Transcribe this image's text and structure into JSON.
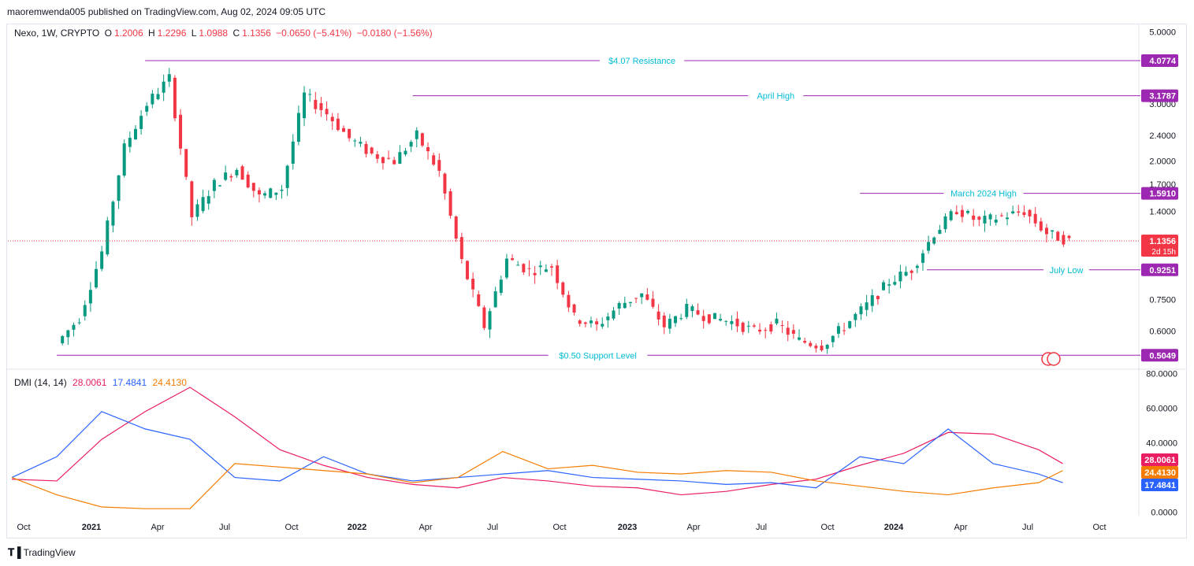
{
  "header": {
    "publisher_line": "maoremwenda005 published on TradingView.com, Aug 02, 2024 09:05 UTC"
  },
  "legend": {
    "symbol": "Nexo, 1W, CRYPTO",
    "open_label": "O",
    "open": "1.2006",
    "high_label": "H",
    "high": "1.2296",
    "low_label": "L",
    "low": "1.0988",
    "close_label": "C",
    "close": "1.1356",
    "change": "−0.0650 (−5.41%)",
    "change2": "−0.0180 (−1.56%)"
  },
  "dmi_legend": {
    "name": "DMI (14, 14)",
    "adx": "28.0061",
    "plus_di": "17.4841",
    "minus_di": "24.4130"
  },
  "footer": {
    "brand": "TradingView",
    "logo_icon": "tradingview-logo-icon"
  },
  "colors": {
    "up": "#089981",
    "down": "#f23645",
    "level_line": "#9c27b0",
    "level_text": "#00bcd4",
    "adx": "#e91e63",
    "plus_di": "#2962ff",
    "minus_di": "#f57c00"
  },
  "chart_data": [
    {
      "type": "candlestick",
      "scale": "log",
      "interval": "1W",
      "x_ticks": [
        "Oct",
        "2021",
        "Apr",
        "Jul",
        "Oct",
        "2022",
        "Apr",
        "Jul",
        "Oct",
        "2023",
        "Apr",
        "Jul",
        "Oct",
        "2024",
        "Apr",
        "Jul",
        "Oct"
      ],
      "y_ticks": [
        "5.0000",
        "3.0000",
        "2.4000",
        "2.0000",
        "1.7000",
        "1.4000",
        "0.7500",
        "0.6000"
      ],
      "y_tick_values": [
        5.0,
        3.0,
        2.4,
        2.0,
        1.7,
        1.4,
        0.75,
        0.6
      ],
      "ylim": [
        0.46,
        5.3
      ],
      "levels": [
        {
          "label": "$4.07 Resistance",
          "value": 4.0774,
          "value_label": "4.0774",
          "x_start": "2021-03-15"
        },
        {
          "label": "April High",
          "value": 3.1787,
          "value_label": "3.1787",
          "x_start": "2022-03-28"
        },
        {
          "label": "March 2024 High",
          "value": 1.591,
          "value_label": "1.5910",
          "x_start": "2023-11-06"
        },
        {
          "label": "July Low",
          "value": 0.9251,
          "value_label": "0.9251",
          "x_start": "2024-02-05"
        },
        {
          "label": "$0.50 Support Level",
          "value": 0.5049,
          "value_label": "0.5049",
          "x_start": "2020-11-23"
        }
      ],
      "last_price": {
        "value": 1.1356,
        "label": "1.1356",
        "countdown": "2d 15h"
      },
      "approx_closes": {
        "dates": [
          "2020-11",
          "2020-12",
          "2021-01",
          "2021-02",
          "2021-03",
          "2021-04",
          "2021-05",
          "2021-06",
          "2021-07",
          "2021-08",
          "2021-09",
          "2021-10",
          "2021-11",
          "2021-12",
          "2022-01",
          "2022-02",
          "2022-03",
          "2022-04",
          "2022-05",
          "2022-06",
          "2022-07",
          "2022-08",
          "2022-09",
          "2022-10",
          "2022-11",
          "2022-12",
          "2023-01",
          "2023-02",
          "2023-03",
          "2023-04",
          "2023-05",
          "2023-06",
          "2023-07",
          "2023-08",
          "2023-09",
          "2023-10",
          "2023-11",
          "2023-12",
          "2024-01",
          "2024-02",
          "2024-03",
          "2024-04",
          "2024-05",
          "2024-06",
          "2024-07",
          "2024-08"
        ],
        "close": [
          0.55,
          0.66,
          1.05,
          2.2,
          3.0,
          3.6,
          1.35,
          1.7,
          1.9,
          1.55,
          1.65,
          3.2,
          2.8,
          2.35,
          2.1,
          2.0,
          2.4,
          1.85,
          0.98,
          0.62,
          1.0,
          0.92,
          0.95,
          0.66,
          0.62,
          0.72,
          0.78,
          0.62,
          0.7,
          0.66,
          0.64,
          0.6,
          0.63,
          0.56,
          0.54,
          0.62,
          0.72,
          0.85,
          0.93,
          1.2,
          1.42,
          1.3,
          1.35,
          1.4,
          1.2,
          1.1356
        ]
      }
    },
    {
      "type": "line",
      "title": "DMI (14, 14)",
      "y_ticks": [
        "80.0000",
        "60.0000",
        "40.0000",
        "0.0000"
      ],
      "y_tick_values": [
        80,
        60,
        40,
        0
      ],
      "ylim": [
        -2,
        82
      ],
      "x": [
        "2020-09",
        "2020-11",
        "2021-01",
        "2021-03",
        "2021-05",
        "2021-07",
        "2021-09",
        "2021-11",
        "2022-01",
        "2022-03",
        "2022-05",
        "2022-07",
        "2022-09",
        "2022-11",
        "2023-01",
        "2023-03",
        "2023-05",
        "2023-07",
        "2023-09",
        "2023-11",
        "2024-01",
        "2024-03",
        "2024-05",
        "2024-07",
        "2024-08"
      ],
      "series": [
        {
          "name": "28.0061",
          "color": "#e91e63",
          "values": [
            19,
            18,
            42,
            58,
            72,
            55,
            36,
            27,
            20,
            16,
            14,
            20,
            18,
            15,
            14,
            10,
            12,
            16,
            19,
            27,
            34,
            46,
            45,
            36,
            28
          ]
        },
        {
          "name": "17.4841",
          "color": "#2962ff",
          "values": [
            20,
            32,
            58,
            48,
            42,
            20,
            18,
            32,
            22,
            18,
            20,
            22,
            24,
            20,
            19,
            18,
            16,
            17,
            14,
            32,
            28,
            48,
            28,
            22,
            17
          ]
        },
        {
          "name": "24.4130",
          "color": "#f57c00",
          "values": [
            20,
            10,
            3,
            2,
            2,
            28,
            26,
            24,
            22,
            17,
            20,
            35,
            25,
            27,
            23,
            22,
            24,
            23,
            18,
            15,
            12,
            10,
            14,
            17,
            24
          ]
        }
      ]
    }
  ]
}
